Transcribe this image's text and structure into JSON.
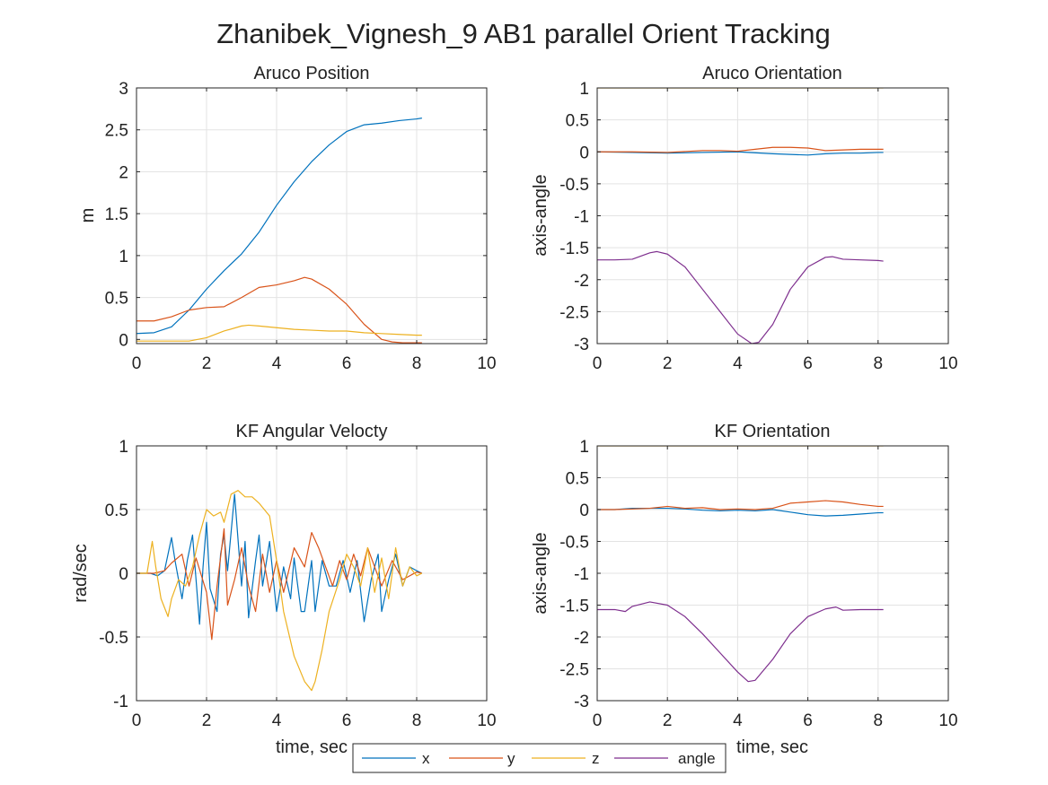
{
  "figure": {
    "title": "Zhanibek_Vignesh_9 AB1 parallel Orient Tracking"
  },
  "legend": {
    "entries": [
      {
        "label": "x",
        "color": "#0072BD"
      },
      {
        "label": "y",
        "color": "#D95319"
      },
      {
        "label": "z",
        "color": "#EDB120"
      },
      {
        "label": "angle",
        "color": "#7E2F8E"
      }
    ]
  },
  "chart_data": [
    {
      "id": "aruco-position",
      "type": "line",
      "title": "Aruco Position",
      "xlabel": "",
      "ylabel": "m",
      "xlim": [
        0,
        10
      ],
      "ylim": [
        -0.05,
        3
      ],
      "xticks": [
        0,
        2,
        4,
        6,
        8,
        10
      ],
      "yticks": [
        0,
        0.5,
        1,
        1.5,
        2,
        2.5,
        3
      ],
      "grid": true,
      "series": [
        {
          "name": "x",
          "color": "#0072BD",
          "x": [
            0,
            0.5,
            1,
            1.5,
            2,
            2.5,
            3,
            3.5,
            4,
            4.5,
            5,
            5.5,
            6,
            6.5,
            7,
            7.5,
            8,
            8.15
          ],
          "y": [
            0.07,
            0.08,
            0.15,
            0.35,
            0.6,
            0.82,
            1.02,
            1.28,
            1.6,
            1.88,
            2.12,
            2.32,
            2.48,
            2.56,
            2.58,
            2.61,
            2.63,
            2.64
          ]
        },
        {
          "name": "y",
          "color": "#D95319",
          "x": [
            0,
            0.5,
            1,
            1.5,
            2,
            2.5,
            3,
            3.5,
            4,
            4.5,
            4.8,
            5,
            5.5,
            6,
            6.5,
            7,
            7.3,
            7.6,
            8,
            8.15
          ],
          "y": [
            0.22,
            0.22,
            0.27,
            0.35,
            0.38,
            0.39,
            0.5,
            0.62,
            0.65,
            0.7,
            0.74,
            0.72,
            0.6,
            0.42,
            0.18,
            0.0,
            -0.03,
            -0.04,
            -0.04,
            -0.04
          ]
        },
        {
          "name": "z",
          "color": "#EDB120",
          "x": [
            0,
            0.5,
            1,
            1.5,
            2,
            2.5,
            3,
            3.2,
            3.5,
            4,
            4.5,
            5,
            5.5,
            6,
            6.5,
            7,
            7.5,
            8,
            8.15
          ],
          "y": [
            -0.02,
            -0.02,
            -0.02,
            -0.02,
            0.02,
            0.1,
            0.16,
            0.17,
            0.16,
            0.14,
            0.12,
            0.11,
            0.1,
            0.1,
            0.08,
            0.07,
            0.06,
            0.05,
            0.05
          ]
        }
      ]
    },
    {
      "id": "aruco-orientation",
      "type": "line",
      "title": "Aruco Orientation",
      "xlabel": "",
      "ylabel": "axis-angle",
      "xlim": [
        0,
        10
      ],
      "ylim": [
        -3,
        1
      ],
      "xticks": [
        0,
        2,
        4,
        6,
        8,
        10
      ],
      "yticks": [
        -3,
        -2.5,
        -2,
        -1.5,
        -1,
        -0.5,
        0,
        0.5,
        1
      ],
      "grid": true,
      "series": [
        {
          "name": "x",
          "color": "#0072BD",
          "x": [
            0,
            1,
            2,
            3,
            4,
            5,
            5.5,
            6,
            6.5,
            7,
            7.5,
            8,
            8.15
          ],
          "y": [
            0,
            -0.01,
            -0.02,
            -0.01,
            0.0,
            -0.03,
            -0.04,
            -0.05,
            -0.03,
            -0.02,
            -0.02,
            -0.01,
            -0.01
          ]
        },
        {
          "name": "y",
          "color": "#D95319",
          "x": [
            0,
            1,
            2,
            3,
            3.5,
            4,
            4.5,
            5,
            5.5,
            6,
            6.5,
            7,
            7.5,
            8,
            8.15
          ],
          "y": [
            0,
            0,
            -0.01,
            0.02,
            0.02,
            0.01,
            0.04,
            0.07,
            0.07,
            0.06,
            0.02,
            0.03,
            0.04,
            0.04,
            0.04
          ]
        },
        {
          "name": "z",
          "color": "#EDB120",
          "x": [
            0,
            2,
            4,
            6,
            8,
            8.15
          ],
          "y": [
            1,
            1,
            1,
            1,
            1,
            1
          ]
        },
        {
          "name": "angle",
          "color": "#7E2F8E",
          "x": [
            0,
            0.5,
            1,
            1.5,
            1.7,
            2,
            2.5,
            3,
            3.5,
            4,
            4.4,
            4.6,
            5,
            5.5,
            6,
            6.5,
            6.7,
            7,
            7.5,
            8,
            8.15
          ],
          "y": [
            -1.69,
            -1.69,
            -1.68,
            -1.58,
            -1.56,
            -1.6,
            -1.8,
            -2.15,
            -2.5,
            -2.85,
            -3.0,
            -2.98,
            -2.7,
            -2.15,
            -1.8,
            -1.65,
            -1.64,
            -1.68,
            -1.69,
            -1.7,
            -1.71
          ]
        }
      ]
    },
    {
      "id": "kf-angular-velocity",
      "type": "line",
      "title": "KF Angular Velocty",
      "xlabel": "time, sec",
      "ylabel": "rad/sec",
      "xlim": [
        0,
        10
      ],
      "ylim": [
        -1,
        1
      ],
      "xticks": [
        0,
        2,
        4,
        6,
        8,
        10
      ],
      "yticks": [
        -1,
        -0.5,
        0,
        0.5,
        1
      ],
      "grid": true,
      "series": [
        {
          "name": "x",
          "color": "#0072BD",
          "x": [
            0,
            0.4,
            0.6,
            0.8,
            0.9,
            1.0,
            1.1,
            1.3,
            1.45,
            1.6,
            1.7,
            1.8,
            1.9,
            2.0,
            2.1,
            2.3,
            2.4,
            2.5,
            2.6,
            2.8,
            3.0,
            3.1,
            3.2,
            3.4,
            3.5,
            3.6,
            3.8,
            4.0,
            4.2,
            4.4,
            4.5,
            4.7,
            4.8,
            4.9,
            5.0,
            5.1,
            5.3,
            5.5,
            5.7,
            5.9,
            6.1,
            6.3,
            6.5,
            6.7,
            6.9,
            7.0,
            7.2,
            7.4,
            7.6,
            7.8,
            8.0,
            8.15
          ],
          "y": [
            0,
            0,
            -0.02,
            0.02,
            0.15,
            0.28,
            0.1,
            -0.2,
            0.1,
            0.3,
            -0.05,
            -0.4,
            0.05,
            0.4,
            -0.12,
            -0.3,
            0.15,
            0.3,
            0.02,
            0.62,
            -0.1,
            0.25,
            -0.35,
            0.1,
            0.3,
            -0.1,
            0.25,
            -0.3,
            0.05,
            -0.2,
            0.12,
            -0.3,
            -0.3,
            -0.1,
            0.1,
            -0.3,
            0.1,
            -0.1,
            -0.1,
            0.1,
            -0.15,
            0.1,
            -0.38,
            -0.05,
            0.15,
            -0.3,
            -0.05,
            0.15,
            -0.1,
            0.05,
            0.02,
            0
          ]
        },
        {
          "name": "y",
          "color": "#D95319",
          "x": [
            0,
            0.5,
            0.8,
            1.0,
            1.3,
            1.5,
            1.7,
            2.0,
            2.15,
            2.3,
            2.5,
            2.6,
            2.8,
            3.0,
            3.2,
            3.4,
            3.6,
            3.8,
            4.0,
            4.2,
            4.5,
            4.8,
            5.0,
            5.2,
            5.4,
            5.6,
            5.8,
            6.0,
            6.2,
            6.4,
            6.6,
            6.8,
            7.0,
            7.3,
            7.6,
            8.0,
            8.15
          ],
          "y": [
            0,
            0,
            0.02,
            0.08,
            0.15,
            -0.1,
            0.12,
            -0.15,
            -0.52,
            -0.1,
            0.35,
            -0.25,
            -0.05,
            0.2,
            -0.1,
            -0.3,
            0.15,
            -0.15,
            0.1,
            -0.15,
            0.2,
            0.05,
            0.32,
            0.2,
            0.05,
            -0.1,
            0.1,
            -0.05,
            0.15,
            -0.02,
            0.2,
            0.05,
            -0.1,
            0.1,
            -0.05,
            0.01,
            0
          ]
        },
        {
          "name": "z",
          "color": "#EDB120",
          "x": [
            0,
            0.3,
            0.45,
            0.55,
            0.7,
            0.9,
            1.0,
            1.2,
            1.4,
            1.6,
            1.8,
            2.0,
            2.2,
            2.4,
            2.5,
            2.7,
            2.9,
            3.1,
            3.3,
            3.5,
            3.8,
            4.0,
            4.2,
            4.5,
            4.8,
            5.0,
            5.1,
            5.3,
            5.5,
            5.8,
            6.0,
            6.2,
            6.4,
            6.6,
            6.8,
            7.0,
            7.2,
            7.4,
            7.6,
            7.8,
            8.0,
            8.15
          ],
          "y": [
            0,
            0,
            0.25,
            0.05,
            -0.2,
            -0.34,
            -0.2,
            -0.05,
            -0.1,
            0.05,
            0.3,
            0.5,
            0.45,
            0.48,
            0.4,
            0.62,
            0.65,
            0.6,
            0.6,
            0.55,
            0.45,
            0.1,
            -0.3,
            -0.65,
            -0.85,
            -0.92,
            -0.85,
            -0.6,
            -0.3,
            -0.05,
            0.15,
            0.05,
            -0.1,
            0.2,
            -0.15,
            0.12,
            -0.2,
            0.2,
            -0.1,
            0.05,
            -0.02,
            0
          ]
        }
      ]
    },
    {
      "id": "kf-orientation",
      "type": "line",
      "title": "KF Orientation",
      "xlabel": "time, sec",
      "ylabel": "axis-angle",
      "xlim": [
        0,
        10
      ],
      "ylim": [
        -3,
        1
      ],
      "xticks": [
        0,
        2,
        4,
        6,
        8,
        10
      ],
      "yticks": [
        -3,
        -2.5,
        -2,
        -1.5,
        -1,
        -0.5,
        0,
        0.5,
        1
      ],
      "grid": true,
      "series": [
        {
          "name": "x",
          "color": "#0072BD",
          "x": [
            0,
            0.5,
            1,
            1.5,
            2,
            2.5,
            3,
            3.5,
            4,
            4.5,
            5,
            5.5,
            6,
            6.5,
            7,
            7.5,
            8,
            8.15
          ],
          "y": [
            0,
            0,
            0.02,
            0.02,
            0.02,
            0.01,
            -0.01,
            -0.02,
            -0.01,
            -0.02,
            0.0,
            -0.04,
            -0.08,
            -0.1,
            -0.09,
            -0.07,
            -0.05,
            -0.05
          ]
        },
        {
          "name": "y",
          "color": "#D95319",
          "x": [
            0,
            0.5,
            1,
            1.5,
            2,
            2.5,
            3,
            3.5,
            4,
            4.5,
            5,
            5.5,
            6,
            6.5,
            7,
            7.5,
            8,
            8.15
          ],
          "y": [
            0,
            0,
            0.01,
            0.02,
            0.05,
            0.02,
            0.03,
            0.0,
            0.01,
            0.0,
            0.02,
            0.1,
            0.12,
            0.14,
            0.12,
            0.08,
            0.05,
            0.05
          ]
        },
        {
          "name": "z",
          "color": "#EDB120",
          "x": [
            0,
            2,
            4,
            6,
            8,
            8.15
          ],
          "y": [
            1,
            1,
            1,
            1,
            1,
            1
          ]
        },
        {
          "name": "angle",
          "color": "#7E2F8E",
          "x": [
            0,
            0.5,
            0.8,
            1,
            1.5,
            2,
            2.5,
            3,
            3.5,
            4,
            4.3,
            4.5,
            5,
            5.5,
            6,
            6.5,
            6.8,
            7,
            7.5,
            8,
            8.15
          ],
          "y": [
            -1.57,
            -1.57,
            -1.6,
            -1.52,
            -1.45,
            -1.5,
            -1.68,
            -1.95,
            -2.25,
            -2.55,
            -2.7,
            -2.68,
            -2.35,
            -1.95,
            -1.68,
            -1.56,
            -1.53,
            -1.58,
            -1.57,
            -1.57,
            -1.57
          ]
        }
      ]
    }
  ]
}
